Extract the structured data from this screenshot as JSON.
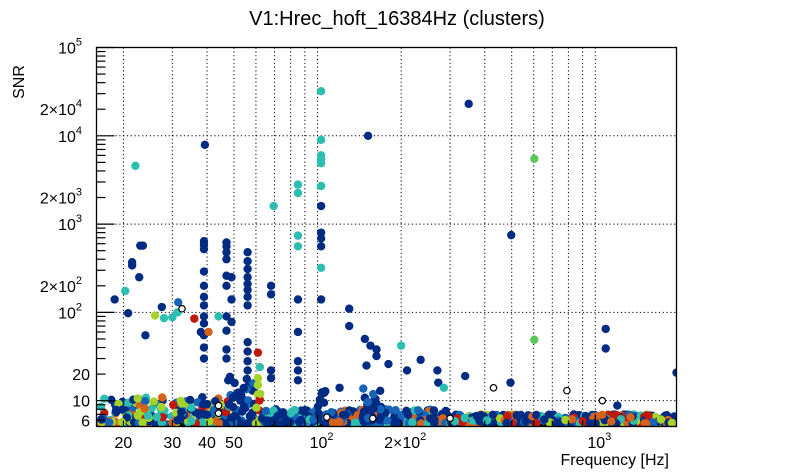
{
  "chart_data": {
    "type": "scatter",
    "title": "V1:Hrec_hoft_16384Hz (clusters)",
    "xlabel": "Frequency [Hz]",
    "ylabel": "SNR",
    "xscale": "log",
    "yscale": "log",
    "xlim": [
      16,
      1960
    ],
    "ylim": [
      5.1,
      100000
    ],
    "grid": true,
    "x_ticks": [
      {
        "value": 20,
        "label": "20",
        "sup": ""
      },
      {
        "value": 30,
        "label": "30",
        "sup": ""
      },
      {
        "value": 40,
        "label": "40",
        "sup": ""
      },
      {
        "value": 50,
        "label": "50",
        "sup": ""
      },
      {
        "value": 100,
        "label": "10",
        "sup": "2"
      },
      {
        "value": 200,
        "label": "2×10",
        "sup": "2"
      },
      {
        "value": 1000,
        "label": "10",
        "sup": "3"
      }
    ],
    "y_ticks": [
      {
        "value": 6,
        "label": "6",
        "sup": ""
      },
      {
        "value": 10,
        "label": "10",
        "sup": ""
      },
      {
        "value": 20,
        "label": "20",
        "sup": ""
      },
      {
        "value": 100,
        "label": "10",
        "sup": "2"
      },
      {
        "value": 200,
        "label": "2×10",
        "sup": "2"
      },
      {
        "value": 1000,
        "label": "10",
        "sup": "3"
      },
      {
        "value": 2000,
        "label": "2×10",
        "sup": "3"
      },
      {
        "value": 10000,
        "label": "10",
        "sup": "4"
      },
      {
        "value": 20000,
        "label": "2×10",
        "sup": "4"
      },
      {
        "value": 100000,
        "label": "10",
        "sup": "5"
      }
    ],
    "colors": {
      "navy": "#002b82",
      "blue": "#1665b8",
      "teal": "#2cbfb0",
      "lime": "#a6d32a",
      "green": "#5cc85c",
      "red": "#c0180a",
      "orange": "#d4621c",
      "open": "#000000"
    },
    "points": [
      {
        "f": 22.1,
        "snr": 4570,
        "c": "teal"
      },
      {
        "f": 103,
        "snr": 32000,
        "c": "teal"
      },
      {
        "f": 103,
        "snr": 9000,
        "c": "teal"
      },
      {
        "f": 103,
        "snr": 6000,
        "c": "teal"
      },
      {
        "f": 103,
        "snr": 5400,
        "c": "teal"
      },
      {
        "f": 103,
        "snr": 4900,
        "c": "teal"
      },
      {
        "f": 103,
        "snr": 2700,
        "c": "teal"
      },
      {
        "f": 103,
        "snr": 1600,
        "c": "navy"
      },
      {
        "f": 103,
        "snr": 800,
        "c": "navy"
      },
      {
        "f": 103,
        "snr": 690,
        "c": "navy"
      },
      {
        "f": 103,
        "snr": 560,
        "c": "navy"
      },
      {
        "f": 103,
        "snr": 320,
        "c": "teal"
      },
      {
        "f": 103,
        "snr": 140,
        "c": "navy"
      },
      {
        "f": 39.3,
        "snr": 7900,
        "c": "navy"
      },
      {
        "f": 350,
        "snr": 23000,
        "c": "navy"
      },
      {
        "f": 152,
        "snr": 10000,
        "c": "navy"
      },
      {
        "f": 603,
        "snr": 5500,
        "c": "green"
      },
      {
        "f": 498,
        "snr": 750,
        "c": "navy"
      },
      {
        "f": 603,
        "snr": 49,
        "c": "green"
      },
      {
        "f": 1090,
        "snr": 65,
        "c": "navy"
      },
      {
        "f": 1090,
        "snr": 39,
        "c": "navy"
      },
      {
        "f": 1960,
        "snr": 20.8,
        "c": "navy"
      },
      {
        "f": 85,
        "snr": 2800,
        "c": "teal"
      },
      {
        "f": 85,
        "snr": 2250,
        "c": "teal"
      },
      {
        "f": 85,
        "snr": 740,
        "c": "teal"
      },
      {
        "f": 85,
        "snr": 560,
        "c": "teal"
      },
      {
        "f": 69.5,
        "snr": 1600,
        "c": "teal"
      },
      {
        "f": 23,
        "snr": 570,
        "c": "navy"
      },
      {
        "f": 23.5,
        "snr": 570,
        "c": "navy"
      },
      {
        "f": 21.5,
        "snr": 340,
        "c": "navy"
      },
      {
        "f": 21.5,
        "snr": 370,
        "c": "navy"
      },
      {
        "f": 22.8,
        "snr": 250,
        "c": "navy"
      },
      {
        "f": 20.3,
        "snr": 175,
        "c": "teal"
      },
      {
        "f": 18.6,
        "snr": 140,
        "c": "navy"
      },
      {
        "f": 20.8,
        "snr": 98,
        "c": "navy"
      },
      {
        "f": 27.5,
        "snr": 115,
        "c": "navy"
      },
      {
        "f": 31.5,
        "snr": 130,
        "c": "blue"
      },
      {
        "f": 31.3,
        "snr": 100,
        "c": "teal"
      },
      {
        "f": 32.5,
        "snr": 110,
        "c": "open"
      },
      {
        "f": 26,
        "snr": 92,
        "c": "lime"
      },
      {
        "f": 28,
        "snr": 86,
        "c": "teal"
      },
      {
        "f": 36,
        "snr": 85,
        "c": "red"
      },
      {
        "f": 30,
        "snr": 88,
        "c": "teal"
      },
      {
        "f": 38,
        "snr": 60,
        "c": "navy"
      },
      {
        "f": 24,
        "snr": 55,
        "c": "navy"
      },
      {
        "f": 39,
        "snr": 580,
        "c": "navy"
      },
      {
        "f": 39,
        "snr": 640,
        "c": "navy"
      },
      {
        "f": 39,
        "snr": 520,
        "c": "navy"
      },
      {
        "f": 39,
        "snr": 290,
        "c": "navy"
      },
      {
        "f": 39,
        "snr": 200,
        "c": "navy"
      },
      {
        "f": 39,
        "snr": 150,
        "c": "navy"
      },
      {
        "f": 39,
        "snr": 120,
        "c": "navy"
      },
      {
        "f": 39,
        "snr": 90,
        "c": "navy"
      },
      {
        "f": 39,
        "snr": 75,
        "c": "navy"
      },
      {
        "f": 39,
        "snr": 55,
        "c": "navy"
      },
      {
        "f": 39,
        "snr": 40,
        "c": "navy"
      },
      {
        "f": 39,
        "snr": 30,
        "c": "navy"
      },
      {
        "f": 40.5,
        "snr": 60,
        "c": "orange"
      },
      {
        "f": 47,
        "snr": 620,
        "c": "navy"
      },
      {
        "f": 47,
        "snr": 560,
        "c": "navy"
      },
      {
        "f": 47,
        "snr": 480,
        "c": "navy"
      },
      {
        "f": 47,
        "snr": 400,
        "c": "navy"
      },
      {
        "f": 47,
        "snr": 260,
        "c": "navy"
      },
      {
        "f": 49,
        "snr": 250,
        "c": "navy"
      },
      {
        "f": 47,
        "snr": 200,
        "c": "navy"
      },
      {
        "f": 49,
        "snr": 140,
        "c": "navy"
      },
      {
        "f": 47,
        "snr": 90,
        "c": "navy"
      },
      {
        "f": 49,
        "snr": 78,
        "c": "navy"
      },
      {
        "f": 47,
        "snr": 62,
        "c": "navy"
      },
      {
        "f": 47,
        "snr": 38,
        "c": "navy"
      },
      {
        "f": 47,
        "snr": 30,
        "c": "navy"
      },
      {
        "f": 44,
        "snr": 90,
        "c": "teal"
      },
      {
        "f": 56,
        "snr": 480,
        "c": "navy"
      },
      {
        "f": 56,
        "snr": 380,
        "c": "navy"
      },
      {
        "f": 56,
        "snr": 310,
        "c": "navy"
      },
      {
        "f": 56,
        "snr": 250,
        "c": "navy"
      },
      {
        "f": 56,
        "snr": 210,
        "c": "navy"
      },
      {
        "f": 56,
        "snr": 180,
        "c": "navy"
      },
      {
        "f": 56,
        "snr": 150,
        "c": "navy"
      },
      {
        "f": 56,
        "snr": 120,
        "c": "navy"
      },
      {
        "f": 56,
        "snr": 46,
        "c": "navy"
      },
      {
        "f": 56,
        "snr": 36,
        "c": "navy"
      },
      {
        "f": 56,
        "snr": 28,
        "c": "navy"
      },
      {
        "f": 56,
        "snr": 22,
        "c": "navy"
      },
      {
        "f": 61,
        "snr": 35,
        "c": "red"
      },
      {
        "f": 62,
        "snr": 24,
        "c": "teal"
      },
      {
        "f": 61,
        "snr": 18,
        "c": "lime"
      },
      {
        "f": 61,
        "snr": 15,
        "c": "lime"
      },
      {
        "f": 68,
        "snr": 200,
        "c": "navy"
      },
      {
        "f": 68,
        "snr": 160,
        "c": "navy"
      },
      {
        "f": 68,
        "snr": 22,
        "c": "navy"
      },
      {
        "f": 68,
        "snr": 18,
        "c": "navy"
      },
      {
        "f": 85,
        "snr": 60,
        "c": "navy"
      },
      {
        "f": 85,
        "snr": 140,
        "c": "navy"
      },
      {
        "f": 85,
        "snr": 28,
        "c": "navy"
      },
      {
        "f": 85,
        "snr": 22,
        "c": "navy"
      },
      {
        "f": 85,
        "snr": 17,
        "c": "navy"
      },
      {
        "f": 130,
        "snr": 110,
        "c": "navy"
      },
      {
        "f": 130,
        "snr": 70,
        "c": "navy"
      },
      {
        "f": 120,
        "snr": 14,
        "c": "navy"
      },
      {
        "f": 148,
        "snr": 50,
        "c": "navy"
      },
      {
        "f": 150,
        "snr": 25,
        "c": "navy"
      },
      {
        "f": 155,
        "snr": 42,
        "c": "navy"
      },
      {
        "f": 163,
        "snr": 38,
        "c": "navy"
      },
      {
        "f": 163,
        "snr": 32,
        "c": "navy"
      },
      {
        "f": 180,
        "snr": 26,
        "c": "navy"
      },
      {
        "f": 200,
        "snr": 42,
        "c": "teal"
      },
      {
        "f": 210,
        "snr": 22,
        "c": "navy"
      },
      {
        "f": 235,
        "snr": 29,
        "c": "navy"
      },
      {
        "f": 270,
        "snr": 22,
        "c": "navy"
      },
      {
        "f": 272,
        "snr": 16,
        "c": "navy"
      },
      {
        "f": 285,
        "snr": 14,
        "c": "teal"
      },
      {
        "f": 340,
        "snr": 19,
        "c": "navy"
      },
      {
        "f": 430,
        "snr": 14,
        "c": "open"
      },
      {
        "f": 495,
        "snr": 16,
        "c": "navy"
      },
      {
        "f": 790,
        "snr": 13,
        "c": "open"
      },
      {
        "f": 1060,
        "snr": 10,
        "c": "open"
      },
      {
        "f": 1200,
        "snr": 8.8,
        "c": "navy"
      },
      {
        "f": 108,
        "snr": 6.5,
        "c": "open"
      },
      {
        "f": 158,
        "snr": 6.3,
        "c": "open"
      },
      {
        "f": 300,
        "snr": 6.3,
        "c": "open"
      },
      {
        "f": 44,
        "snr": 8.8,
        "c": "open"
      },
      {
        "f": 44,
        "snr": 7.2,
        "c": "open"
      }
    ],
    "clusters": [
      {
        "f_min": 16.5,
        "f_max": 48,
        "snr_top": 11,
        "colors": [
          "navy",
          "lime",
          "teal",
          "blue",
          "navy",
          "teal",
          "lime",
          "navy",
          "red",
          "orange"
        ]
      },
      {
        "f_min": 47,
        "f_max": 60,
        "snr_top": 22,
        "colors": [
          "navy",
          "navy",
          "navy",
          "blue"
        ]
      },
      {
        "f_min": 60,
        "f_max": 63,
        "snr_top": 15,
        "colors": [
          "lime",
          "lime",
          "red"
        ]
      },
      {
        "f_min": 63,
        "f_max": 100,
        "snr_top": 8,
        "colors": [
          "navy",
          "blue",
          "teal",
          "navy"
        ]
      },
      {
        "f_min": 100,
        "f_max": 107,
        "snr_top": 15,
        "colors": [
          "navy",
          "navy"
        ]
      },
      {
        "f_min": 107,
        "f_max": 300,
        "snr_top": 8,
        "colors": [
          "navy",
          "blue",
          "navy",
          "teal",
          "orange"
        ]
      },
      {
        "f_min": 145,
        "f_max": 170,
        "snr_top": 14,
        "colors": [
          "navy",
          "navy",
          "blue"
        ]
      },
      {
        "f_min": 300,
        "f_max": 1960,
        "snr_top": 7,
        "colors": [
          "navy",
          "blue",
          "teal",
          "lime",
          "orange",
          "navy",
          "navy",
          "red"
        ]
      }
    ]
  }
}
